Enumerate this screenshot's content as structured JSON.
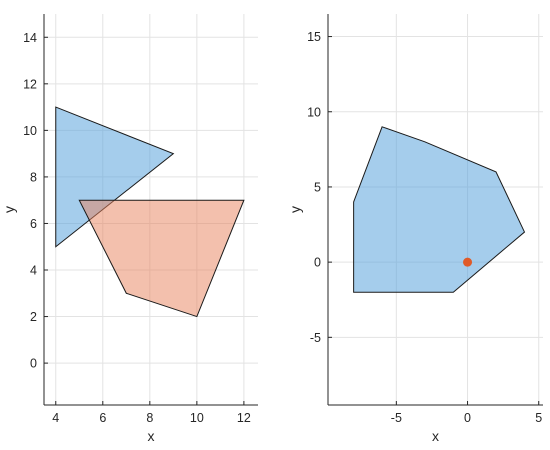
{
  "chart_data": [
    {
      "type": "area",
      "xlabel": "x",
      "ylabel": "y",
      "xlim": [
        3.5,
        12.6
      ],
      "ylim": [
        -1.8,
        15
      ],
      "xticks": [
        4,
        6,
        8,
        10,
        12
      ],
      "yticks": [
        0,
        2,
        4,
        6,
        8,
        10,
        12,
        14
      ],
      "grid": true,
      "polygons": [
        {
          "color": "#5ba4dd",
          "opacity": 0.55,
          "points": [
            [
              4,
              11
            ],
            [
              9,
              9
            ],
            [
              4,
              5
            ]
          ]
        },
        {
          "color": "#e8825c",
          "opacity": 0.5,
          "points": [
            [
              5,
              7
            ],
            [
              12,
              7
            ],
            [
              10,
              2
            ],
            [
              7,
              3
            ]
          ]
        }
      ]
    },
    {
      "type": "area",
      "xlabel": "x",
      "ylabel": "y",
      "xlim": [
        -9.8,
        5.3
      ],
      "ylim": [
        -9.5,
        16.5
      ],
      "xticks": [
        -5,
        0,
        5
      ],
      "yticks": [
        -5,
        0,
        5,
        10,
        15
      ],
      "grid": true,
      "polygons": [
        {
          "color": "#5ba4dd",
          "opacity": 0.55,
          "points": [
            [
              -6,
              9
            ],
            [
              -3,
              8
            ],
            [
              2,
              6
            ],
            [
              4,
              2
            ],
            [
              -1,
              -2
            ],
            [
              -8,
              -2
            ],
            [
              -8,
              4
            ]
          ]
        }
      ],
      "points": [
        {
          "x": 0,
          "y": 0,
          "color": "#e05a28"
        }
      ]
    }
  ]
}
